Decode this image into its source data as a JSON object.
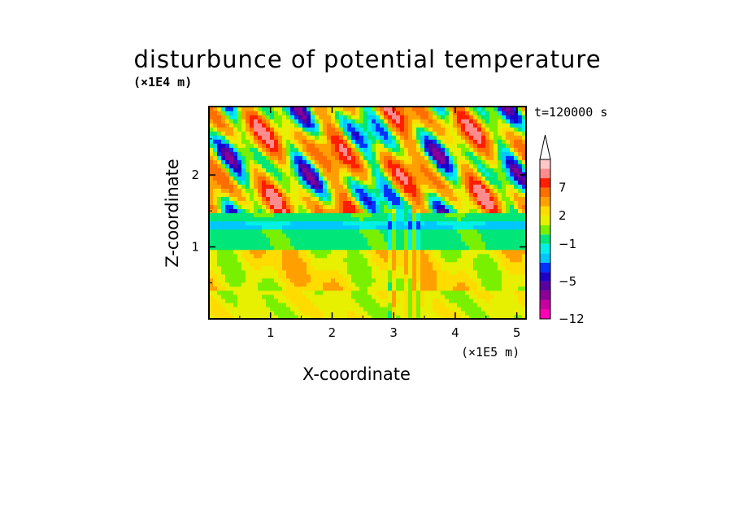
{
  "chart_data": {
    "type": "heatmap",
    "title": "disturbunce of potential temperature",
    "xlabel": "X-coordinate",
    "ylabel": "Z-coordinate",
    "x_unit": "(×1E5 m)",
    "y_unit": "(×1E4 m)",
    "time_label": "t=120000 s",
    "xlim": [
      0,
      5.15
    ],
    "ylim": [
      0,
      2.95
    ],
    "xticks": [
      "1",
      "2",
      "3",
      "4",
      "5"
    ],
    "yticks": [
      "1",
      "2"
    ],
    "x_tick_values": [
      1,
      2,
      3,
      4,
      5
    ],
    "y_tick_values": [
      1,
      2
    ],
    "colorbar": {
      "labels": [
        "7",
        "2",
        "−1",
        "−5",
        "−12"
      ],
      "label_values": [
        7,
        2,
        -1,
        -5,
        -12
      ],
      "levels": [
        -12,
        -10,
        -8,
        -6,
        -5,
        -4,
        -3,
        -2,
        -1,
        0,
        1,
        2,
        3,
        5,
        7,
        9,
        12
      ],
      "colors": [
        "#ff00b4",
        "#c800a0",
        "#8c0096",
        "#5a00a0",
        "#1e00c8",
        "#0032ff",
        "#00c8ff",
        "#00f0e6",
        "#00e678",
        "#78f000",
        "#e6f000",
        "#ffdc00",
        "#ffa000",
        "#ff6e00",
        "#ff1e00",
        "#ff8c8c",
        "#ffc8c8"
      ],
      "extend": "max"
    },
    "field_bands": [
      {
        "z_range": [
          0,
          0.4
        ],
        "value": 1.2,
        "description_value_range": [
          0,
          3
        ]
      },
      {
        "z_range": [
          0.4,
          0.9
        ],
        "value": 1.8
      },
      {
        "z_range": [
          0.9,
          1.4
        ],
        "value": -0.5
      },
      {
        "z_range": [
          1.4,
          2.95
        ],
        "value": 2.5,
        "variability": 7
      }
    ]
  }
}
